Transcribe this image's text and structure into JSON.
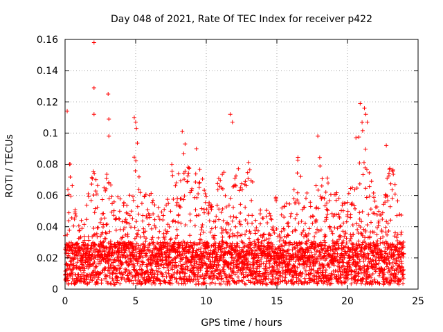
{
  "chart_data": {
    "type": "scatter",
    "title": "Day 048 of 2021, Rate Of TEC Index for receiver p422",
    "xlabel": "GPS time / hours",
    "ylabel": "ROTI / TECUs",
    "xlim": [
      0,
      25
    ],
    "ylim": [
      0,
      0.16
    ],
    "x_ticks": [
      0,
      5,
      10,
      15,
      20,
      25
    ],
    "y_ticks": [
      0,
      0.02,
      0.04,
      0.06,
      0.08,
      0.1,
      0.12,
      0.14,
      0.16
    ],
    "x_tick_labels": [
      "0",
      "5",
      "10",
      "15",
      "20",
      "25"
    ],
    "y_tick_labels": [
      "0",
      "0.02",
      "0.04",
      "0.06",
      "0.08",
      "0.1",
      "0.12",
      "0.14",
      "0.16"
    ],
    "grid": true,
    "marker": "plus",
    "color": "#ff0000",
    "baseline_range": [
      0.003,
      0.03
    ],
    "envelope": [
      [
        0.0,
        0.035
      ],
      [
        0.3,
        0.09
      ],
      [
        0.6,
        0.06
      ],
      [
        1.0,
        0.045
      ],
      [
        1.5,
        0.055
      ],
      [
        2.0,
        0.088
      ],
      [
        2.5,
        0.06
      ],
      [
        3.0,
        0.075
      ],
      [
        3.5,
        0.065
      ],
      [
        4.0,
        0.06
      ],
      [
        4.5,
        0.058
      ],
      [
        5.0,
        0.105
      ],
      [
        5.5,
        0.06
      ],
      [
        6.0,
        0.065
      ],
      [
        6.5,
        0.055
      ],
      [
        7.0,
        0.05
      ],
      [
        7.5,
        0.082
      ],
      [
        8.0,
        0.075
      ],
      [
        8.5,
        0.095
      ],
      [
        9.0,
        0.07
      ],
      [
        9.5,
        0.09
      ],
      [
        10.0,
        0.06
      ],
      [
        10.5,
        0.055
      ],
      [
        11.0,
        0.08
      ],
      [
        11.5,
        0.07
      ],
      [
        12.0,
        0.08
      ],
      [
        12.5,
        0.075
      ],
      [
        13.0,
        0.082
      ],
      [
        13.5,
        0.06
      ],
      [
        14.0,
        0.05
      ],
      [
        14.5,
        0.055
      ],
      [
        15.0,
        0.06
      ],
      [
        15.5,
        0.06
      ],
      [
        16.0,
        0.055
      ],
      [
        16.5,
        0.085
      ],
      [
        17.0,
        0.065
      ],
      [
        17.5,
        0.06
      ],
      [
        18.0,
        0.085
      ],
      [
        18.5,
        0.075
      ],
      [
        19.0,
        0.07
      ],
      [
        19.5,
        0.055
      ],
      [
        20.0,
        0.06
      ],
      [
        20.5,
        0.078
      ],
      [
        21.0,
        0.11
      ],
      [
        21.5,
        0.08
      ],
      [
        22.0,
        0.055
      ],
      [
        22.5,
        0.05
      ],
      [
        23.0,
        0.09
      ],
      [
        23.5,
        0.06
      ],
      [
        24.0,
        0.04
      ]
    ],
    "outliers": [
      [
        0.15,
        0.114
      ],
      [
        2.05,
        0.158
      ],
      [
        2.05,
        0.129
      ],
      [
        2.05,
        0.112
      ],
      [
        3.05,
        0.125
      ],
      [
        3.1,
        0.109
      ],
      [
        3.1,
        0.098
      ],
      [
        4.9,
        0.11
      ],
      [
        5.0,
        0.107
      ],
      [
        5.05,
        0.103
      ],
      [
        8.3,
        0.101
      ],
      [
        8.5,
        0.093
      ],
      [
        9.3,
        0.09
      ],
      [
        11.7,
        0.112
      ],
      [
        11.85,
        0.107
      ],
      [
        17.9,
        0.098
      ],
      [
        20.9,
        0.119
      ],
      [
        21.2,
        0.116
      ],
      [
        21.3,
        0.112
      ],
      [
        21.4,
        0.107
      ],
      [
        22.75,
        0.092
      ],
      [
        20.6,
        0.097
      ]
    ]
  }
}
